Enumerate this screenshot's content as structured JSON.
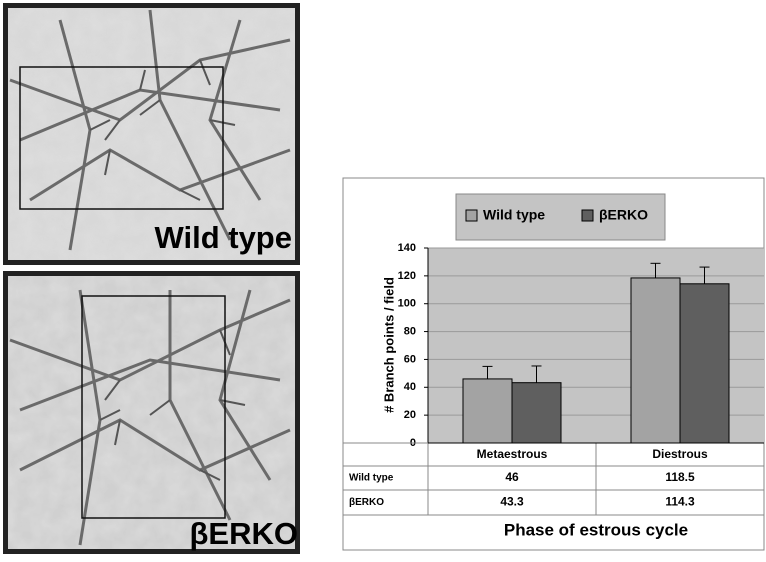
{
  "images": [
    {
      "label": "Wild type"
    },
    {
      "label": "βERKO"
    }
  ],
  "chart_data": {
    "type": "bar",
    "categories": [
      "Metaestrous",
      "Diestrous"
    ],
    "series": [
      {
        "name": "Wild type",
        "color": "#a3a3a3",
        "values": [
          46,
          118.5
        ],
        "errors": [
          9,
          10.5
        ]
      },
      {
        "name": "βERKO",
        "color": "#5f5f5f",
        "values": [
          43.3,
          114.3
        ],
        "errors": [
          12,
          12
        ]
      }
    ],
    "ylabel": "# Branch points / field",
    "xlabel": "Phase of estrous cycle",
    "ylim": [
      0,
      140
    ],
    "yticks": [
      0,
      20,
      40,
      60,
      80,
      100,
      120,
      140
    ],
    "grid": true,
    "legend": "top"
  }
}
